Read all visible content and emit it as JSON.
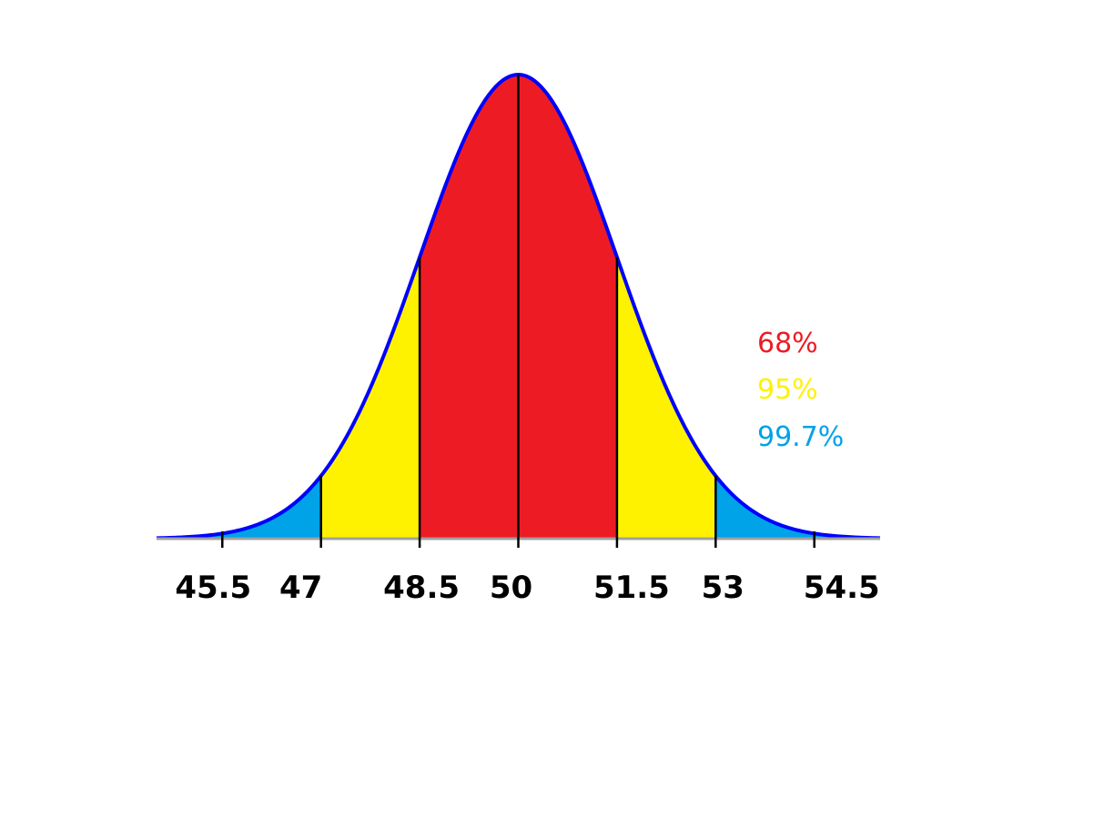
{
  "chart_data": {
    "type": "area",
    "title": "",
    "xlabel": "",
    "ylabel": "",
    "distribution": {
      "mean": 50,
      "sd": 1.5
    },
    "xlim": [
      44.5,
      55.5
    ],
    "ticks": [
      45.5,
      47,
      48.5,
      50,
      51.5,
      53,
      54.5
    ],
    "tick_labels": [
      "45.5",
      "47",
      "48.5",
      "50",
      "51.5",
      "53",
      "54.5"
    ],
    "bands": [
      {
        "label": "99.7%",
        "from": 45.5,
        "to": 54.5,
        "color": "#00a2e8"
      },
      {
        "label": "95%",
        "from": 47,
        "to": 53,
        "color": "#fff200"
      },
      {
        "label": "68%",
        "from": 48.5,
        "to": 51.5,
        "color": "#ed1c24"
      }
    ],
    "legend": {
      "position": "right",
      "entries": [
        {
          "label": "68%",
          "color": "#ed1c24"
        },
        {
          "label": "95%",
          "color": "#fff200"
        },
        {
          "label": "99.7%",
          "color": "#00a2e8"
        }
      ]
    },
    "grid": false,
    "outline_color": "#0000ff",
    "axis_color": "#a0a0a0"
  }
}
